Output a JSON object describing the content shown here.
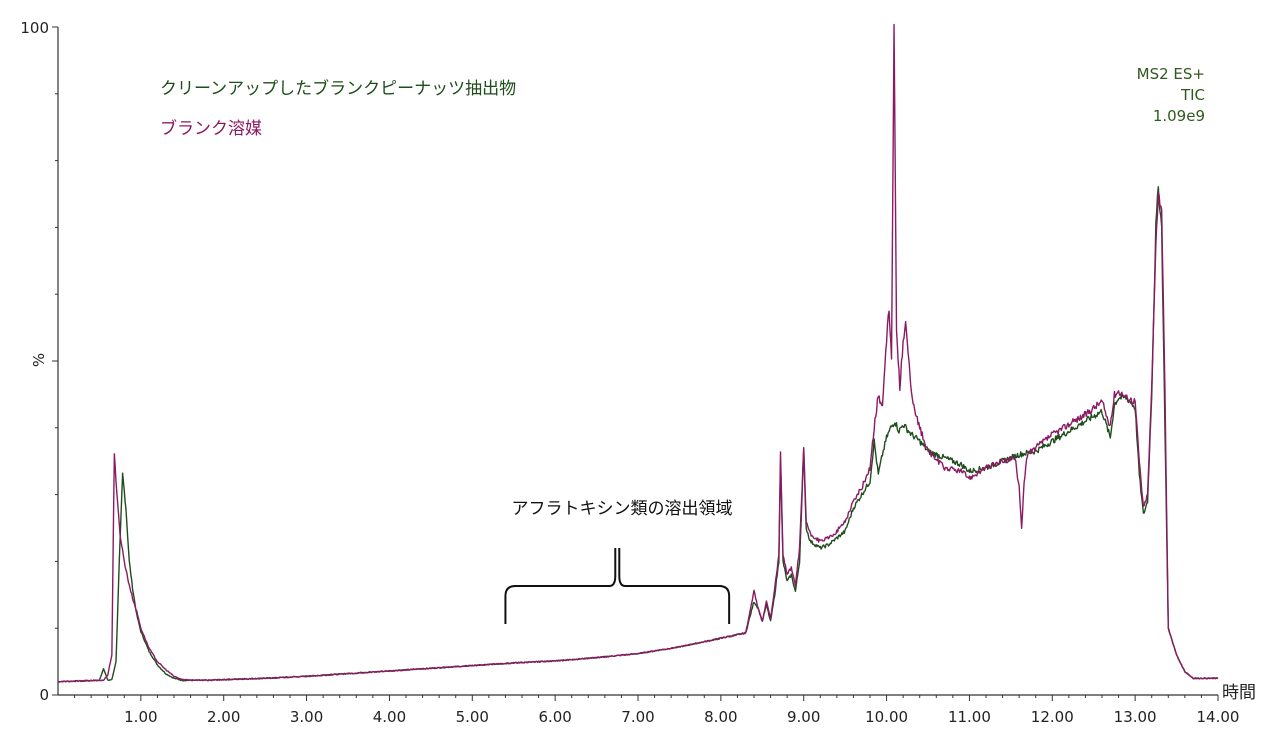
{
  "chart_data": {
    "type": "line",
    "xlabel": "時間",
    "ylabel": "%",
    "xlim": [
      0.0,
      14.0
    ],
    "ylim": [
      0,
      100
    ],
    "x_ticks": [
      1.0,
      2.0,
      3.0,
      4.0,
      5.0,
      6.0,
      7.0,
      8.0,
      9.0,
      10.0,
      11.0,
      12.0,
      13.0,
      14.0
    ],
    "x_tick_labels": [
      "1.00",
      "2.00",
      "3.00",
      "4.00",
      "5.00",
      "6.00",
      "7.00",
      "8.00",
      "9.00",
      "10.00",
      "11.00",
      "12.00",
      "13.00",
      "14.00"
    ],
    "y_tick_labels": [
      "0",
      "%",
      "100"
    ],
    "info": {
      "line1": "MS2 ES+",
      "line2": "TIC",
      "line3": "1.09e9"
    },
    "annotation": {
      "text": "アフラトキシン類の溶出領域",
      "x_start": 5.4,
      "x_end": 8.1
    },
    "legend_position": "top-left",
    "series": [
      {
        "name": "クリーンアップしたブランクピーナッツ抽出物",
        "color": "#1f4d1c",
        "points": [
          [
            0.0,
            2.0
          ],
          [
            0.5,
            2.2
          ],
          [
            0.55,
            4.0
          ],
          [
            0.6,
            2.2
          ],
          [
            0.65,
            2.3
          ],
          [
            0.7,
            5.0
          ],
          [
            0.74,
            20.0
          ],
          [
            0.78,
            33.0
          ],
          [
            0.82,
            28.0
          ],
          [
            0.86,
            20.0
          ],
          [
            0.9,
            16.0
          ],
          [
            0.95,
            12.0
          ],
          [
            1.0,
            9.5
          ],
          [
            1.05,
            8.0
          ],
          [
            1.1,
            6.5
          ],
          [
            1.2,
            4.5
          ],
          [
            1.3,
            3.2
          ],
          [
            1.4,
            2.5
          ],
          [
            1.5,
            2.2
          ],
          [
            1.8,
            2.2
          ],
          [
            2.0,
            2.3
          ],
          [
            2.5,
            2.5
          ],
          [
            3.0,
            2.8
          ],
          [
            3.5,
            3.2
          ],
          [
            4.0,
            3.6
          ],
          [
            4.5,
            4.0
          ],
          [
            5.0,
            4.4
          ],
          [
            5.5,
            4.8
          ],
          [
            6.0,
            5.1
          ],
          [
            6.5,
            5.6
          ],
          [
            7.0,
            6.2
          ],
          [
            7.5,
            7.2
          ],
          [
            8.0,
            8.5
          ],
          [
            8.3,
            9.3
          ],
          [
            8.4,
            14.0
          ],
          [
            8.45,
            13.0
          ],
          [
            8.5,
            11.0
          ],
          [
            8.55,
            13.5
          ],
          [
            8.6,
            11.0
          ],
          [
            8.65,
            15.0
          ],
          [
            8.7,
            20.0
          ],
          [
            8.72,
            35.0
          ],
          [
            8.75,
            20.0
          ],
          [
            8.8,
            17.0
          ],
          [
            8.85,
            18.0
          ],
          [
            8.9,
            15.5
          ],
          [
            8.95,
            20.0
          ],
          [
            9.0,
            36.5
          ],
          [
            9.03,
            25.0
          ],
          [
            9.08,
            23.0
          ],
          [
            9.2,
            22.0
          ],
          [
            9.3,
            22.5
          ],
          [
            9.4,
            23.5
          ],
          [
            9.5,
            24.5
          ],
          [
            9.6,
            28.0
          ],
          [
            9.7,
            30.0
          ],
          [
            9.8,
            32.0
          ],
          [
            9.85,
            38.0
          ],
          [
            9.9,
            33.0
          ],
          [
            9.95,
            36.0
          ],
          [
            10.0,
            38.5
          ],
          [
            10.05,
            40.0
          ],
          [
            10.1,
            41.0
          ],
          [
            10.15,
            39.5
          ],
          [
            10.2,
            40.5
          ],
          [
            10.3,
            39.0
          ],
          [
            10.4,
            38.0
          ],
          [
            10.5,
            36.5
          ],
          [
            10.7,
            35.5
          ],
          [
            10.9,
            34.5
          ],
          [
            11.0,
            33.5
          ],
          [
            11.2,
            34.0
          ],
          [
            11.4,
            35.0
          ],
          [
            11.6,
            36.0
          ],
          [
            11.8,
            36.5
          ],
          [
            12.0,
            38.0
          ],
          [
            12.2,
            39.5
          ],
          [
            12.4,
            41.0
          ],
          [
            12.6,
            42.5
          ],
          [
            12.7,
            38.5
          ],
          [
            12.75,
            43.5
          ],
          [
            12.8,
            44.5
          ],
          [
            12.9,
            44.5
          ],
          [
            13.0,
            43.0
          ],
          [
            13.05,
            33.0
          ],
          [
            13.1,
            27.0
          ],
          [
            13.15,
            29.0
          ],
          [
            13.2,
            45.0
          ],
          [
            13.25,
            70.0
          ],
          [
            13.28,
            76.0
          ],
          [
            13.32,
            70.0
          ],
          [
            13.36,
            40.0
          ],
          [
            13.4,
            10.0
          ],
          [
            13.45,
            8.0
          ],
          [
            13.5,
            6.0
          ],
          [
            13.6,
            3.5
          ],
          [
            13.7,
            2.5
          ],
          [
            13.8,
            2.5
          ],
          [
            14.0,
            2.5
          ]
        ]
      },
      {
        "name": "ブランク溶媒",
        "color": "#8b1a63",
        "points": [
          [
            0.0,
            2.0
          ],
          [
            0.55,
            2.2
          ],
          [
            0.6,
            3.0
          ],
          [
            0.65,
            6.0
          ],
          [
            0.68,
            36.5
          ],
          [
            0.71,
            30.0
          ],
          [
            0.75,
            24.0
          ],
          [
            0.8,
            20.0
          ],
          [
            0.85,
            17.0
          ],
          [
            0.9,
            14.5
          ],
          [
            0.95,
            12.5
          ],
          [
            1.0,
            10.0
          ],
          [
            1.05,
            8.5
          ],
          [
            1.1,
            7.0
          ],
          [
            1.2,
            5.0
          ],
          [
            1.3,
            3.8
          ],
          [
            1.4,
            2.8
          ],
          [
            1.5,
            2.3
          ],
          [
            1.8,
            2.2
          ],
          [
            2.0,
            2.3
          ],
          [
            2.5,
            2.5
          ],
          [
            3.0,
            2.8
          ],
          [
            3.5,
            3.2
          ],
          [
            4.0,
            3.6
          ],
          [
            4.5,
            4.0
          ],
          [
            5.0,
            4.4
          ],
          [
            5.5,
            4.8
          ],
          [
            6.0,
            5.1
          ],
          [
            6.5,
            5.6
          ],
          [
            7.0,
            6.2
          ],
          [
            7.5,
            7.2
          ],
          [
            8.0,
            8.5
          ],
          [
            8.3,
            9.3
          ],
          [
            8.4,
            15.5
          ],
          [
            8.45,
            13.0
          ],
          [
            8.5,
            11.0
          ],
          [
            8.55,
            14.0
          ],
          [
            8.6,
            11.5
          ],
          [
            8.65,
            16.0
          ],
          [
            8.7,
            21.0
          ],
          [
            8.72,
            36.0
          ],
          [
            8.75,
            21.0
          ],
          [
            8.8,
            18.0
          ],
          [
            8.85,
            19.0
          ],
          [
            8.9,
            16.5
          ],
          [
            8.95,
            22.0
          ],
          [
            9.0,
            37.0
          ],
          [
            9.03,
            26.0
          ],
          [
            9.08,
            24.0
          ],
          [
            9.2,
            23.0
          ],
          [
            9.3,
            23.5
          ],
          [
            9.4,
            24.5
          ],
          [
            9.5,
            26.0
          ],
          [
            9.6,
            29.0
          ],
          [
            9.7,
            31.0
          ],
          [
            9.8,
            34.0
          ],
          [
            9.85,
            40.0
          ],
          [
            9.9,
            45.0
          ],
          [
            9.95,
            43.0
          ],
          [
            10.0,
            53.0
          ],
          [
            10.03,
            58.0
          ],
          [
            10.06,
            50.0
          ],
          [
            10.09,
            100.0
          ],
          [
            10.12,
            55.0
          ],
          [
            10.16,
            46.0
          ],
          [
            10.2,
            53.0
          ],
          [
            10.23,
            56.0
          ],
          [
            10.27,
            50.0
          ],
          [
            10.3,
            45.0
          ],
          [
            10.35,
            42.0
          ],
          [
            10.4,
            40.0
          ],
          [
            10.5,
            36.5
          ],
          [
            10.7,
            34.0
          ],
          [
            10.9,
            33.5
          ],
          [
            11.0,
            32.5
          ],
          [
            11.2,
            34.0
          ],
          [
            11.4,
            35.0
          ],
          [
            11.55,
            35.5
          ],
          [
            11.6,
            31.0
          ],
          [
            11.63,
            25.0
          ],
          [
            11.66,
            32.0
          ],
          [
            11.7,
            36.0
          ],
          [
            11.8,
            37.0
          ],
          [
            12.0,
            39.0
          ],
          [
            12.2,
            40.5
          ],
          [
            12.4,
            42.0
          ],
          [
            12.6,
            44.0
          ],
          [
            12.7,
            40.0
          ],
          [
            12.75,
            45.0
          ],
          [
            12.8,
            45.5
          ],
          [
            12.9,
            44.5
          ],
          [
            13.0,
            44.0
          ],
          [
            13.05,
            35.0
          ],
          [
            13.1,
            28.0
          ],
          [
            13.15,
            30.0
          ],
          [
            13.2,
            46.0
          ],
          [
            13.25,
            68.0
          ],
          [
            13.28,
            75.0
          ],
          [
            13.32,
            73.0
          ],
          [
            13.36,
            45.0
          ],
          [
            13.4,
            10.0
          ],
          [
            13.45,
            8.0
          ],
          [
            13.5,
            6.0
          ],
          [
            13.6,
            3.5
          ],
          [
            13.7,
            2.5
          ],
          [
            13.8,
            2.5
          ],
          [
            14.0,
            2.5
          ]
        ]
      }
    ]
  }
}
